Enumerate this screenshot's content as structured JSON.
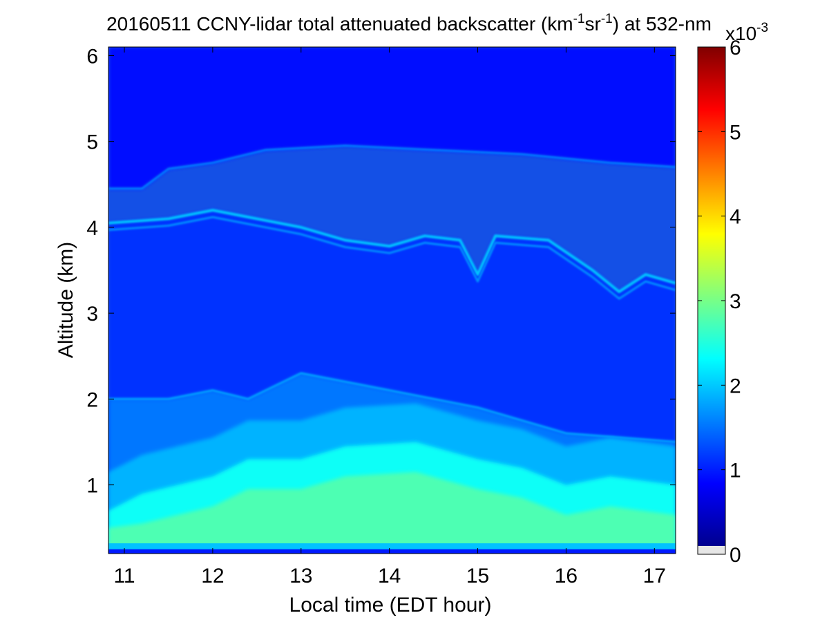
{
  "chart_data": {
    "type": "heatmap",
    "title": "20160511 CCNY-lidar total attenuated backscatter (km-1sr-1) at 532-nm",
    "title_parts": {
      "prefix": "20160511 CCNY-lidar total attenuated backscatter (km",
      "sup1": "-1",
      "mid": "sr",
      "sup2": "-1",
      "suffix": ") at 532-nm"
    },
    "xlabel": "Local time (EDT hour)",
    "ylabel": "Altitude (km)",
    "xlim": [
      10.82,
      17.24
    ],
    "ylim": [
      0.2,
      6.1
    ],
    "x_ticks": [
      11,
      12,
      13,
      14,
      15,
      16,
      17
    ],
    "x_tick_labels": [
      "11",
      "12",
      "13",
      "14",
      "15",
      "16",
      "17"
    ],
    "y_ticks": [
      1,
      2,
      3,
      4,
      5,
      6
    ],
    "y_tick_labels": [
      "1",
      "2",
      "3",
      "4",
      "5",
      "6"
    ],
    "colorbar": {
      "colormap": "jet",
      "range": [
        0,
        6
      ],
      "ticks": [
        0,
        1,
        2,
        3,
        4,
        5,
        6
      ],
      "tick_labels": [
        "0",
        "1",
        "2",
        "3",
        "4",
        "5",
        "6"
      ],
      "multiplier_base": "x10",
      "multiplier_exp": "-3",
      "nan_color": "#e6e6e6"
    },
    "grid": false,
    "layers": {
      "upper_layer_top_km": [
        {
          "t": 10.82,
          "alt": 4.45
        },
        {
          "t": 11.2,
          "alt": 4.45
        },
        {
          "t": 11.5,
          "alt": 4.68
        },
        {
          "t": 12.0,
          "alt": 4.75
        },
        {
          "t": 12.6,
          "alt": 4.9
        },
        {
          "t": 13.5,
          "alt": 4.95
        },
        {
          "t": 14.5,
          "alt": 4.9
        },
        {
          "t": 15.5,
          "alt": 4.85
        },
        {
          "t": 16.5,
          "alt": 4.75
        },
        {
          "t": 17.24,
          "alt": 4.7
        }
      ],
      "aerosol_layer_top_km": [
        {
          "t": 10.82,
          "alt": 4.05
        },
        {
          "t": 11.5,
          "alt": 4.1
        },
        {
          "t": 12.0,
          "alt": 4.2
        },
        {
          "t": 12.5,
          "alt": 4.1
        },
        {
          "t": 13.0,
          "alt": 4.0
        },
        {
          "t": 13.5,
          "alt": 3.85
        },
        {
          "t": 14.0,
          "alt": 3.78
        },
        {
          "t": 14.4,
          "alt": 3.9
        },
        {
          "t": 14.8,
          "alt": 3.85
        },
        {
          "t": 15.0,
          "alt": 3.45
        },
        {
          "t": 15.2,
          "alt": 3.9
        },
        {
          "t": 15.8,
          "alt": 3.85
        },
        {
          "t": 16.3,
          "alt": 3.5
        },
        {
          "t": 16.6,
          "alt": 3.25
        },
        {
          "t": 16.9,
          "alt": 3.45
        },
        {
          "t": 17.24,
          "alt": 3.35
        }
      ],
      "residual_layer_top_km": [
        {
          "t": 10.82,
          "alt": 2.0
        },
        {
          "t": 11.5,
          "alt": 2.0
        },
        {
          "t": 12.0,
          "alt": 2.1
        },
        {
          "t": 12.4,
          "alt": 2.0
        },
        {
          "t": 13.0,
          "alt": 2.3
        },
        {
          "t": 14.0,
          "alt": 2.1
        },
        {
          "t": 15.0,
          "alt": 1.9
        },
        {
          "t": 16.0,
          "alt": 1.6
        },
        {
          "t": 17.24,
          "alt": 1.5
        }
      ],
      "boundary_layer_top_km": [
        {
          "t": 10.82,
          "alt": 0.7
        },
        {
          "t": 11.2,
          "alt": 0.9
        },
        {
          "t": 12.0,
          "alt": 1.1
        },
        {
          "t": 12.4,
          "alt": 1.3
        },
        {
          "t": 13.0,
          "alt": 1.3
        },
        {
          "t": 13.5,
          "alt": 1.45
        },
        {
          "t": 14.3,
          "alt": 1.5
        },
        {
          "t": 15.0,
          "alt": 1.3
        },
        {
          "t": 15.5,
          "alt": 1.2
        },
        {
          "t": 16.0,
          "alt": 1.0
        },
        {
          "t": 16.5,
          "alt": 1.1
        },
        {
          "t": 17.24,
          "alt": 1.0
        }
      ],
      "boundary_layer_value_e3": 2.3,
      "free_troposphere_value_e3": 1.0,
      "upper_background_value_e3": 0.8
    }
  }
}
